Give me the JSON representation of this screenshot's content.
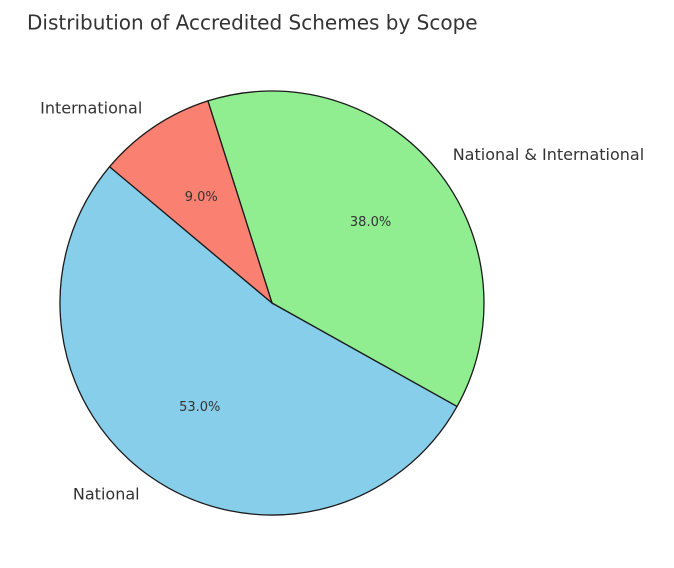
{
  "chart_data": {
    "type": "pie",
    "title": "Distribution of Accredited Schemes by Scope",
    "categories": [
      "National",
      "National & International",
      "International"
    ],
    "values": [
      53,
      38,
      9
    ],
    "value_labels": [
      "53.0%",
      "38.0%",
      "9.0%"
    ],
    "colors": [
      "#87ceeb",
      "#90ee90",
      "#fa8072"
    ]
  }
}
